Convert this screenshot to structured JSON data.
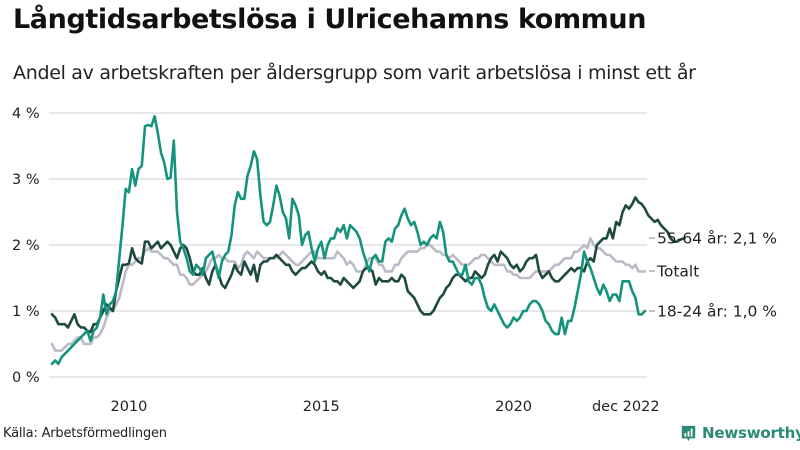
{
  "header": {
    "title": "Långtidsarbetslösa i Ulricehamns kommun",
    "subtitle": "Andel av arbetskraften per åldersgrupp som varit arbetslösa i minst ett år"
  },
  "footer": {
    "source": "Källa: Arbetsförmedlingen",
    "brand": "Newsworthy",
    "brand_icon": "bar-chart-speech-bubble-icon",
    "brand_color": "#2a8a74"
  },
  "chart_data": {
    "type": "line",
    "title": "Långtidsarbetslösa i Ulricehamns kommun",
    "subtitle": "Andel av arbetskraften per åldersgrupp som varit arbetslösa i minst ett år",
    "xlabel": "",
    "ylabel": "",
    "x_start": "2008-01",
    "x_end": "2022-12",
    "x_frequency": "monthly",
    "x_ticks": [
      {
        "label": "2010",
        "month_index": 24
      },
      {
        "label": "2015",
        "month_index": 84
      },
      {
        "label": "2020",
        "month_index": 144
      },
      {
        "label": "dec 2022",
        "month_index": 179
      }
    ],
    "y_ticks": [
      {
        "label": "0 %",
        "value": 0
      },
      {
        "label": "1 %",
        "value": 1
      },
      {
        "label": "2 %",
        "value": 2
      },
      {
        "label": "3 %",
        "value": 3
      },
      {
        "label": "4 %",
        "value": 4
      }
    ],
    "ylim": [
      0,
      4
    ],
    "grid": true,
    "legend": "inline-right",
    "series": [
      {
        "name": "Totalt",
        "end_label": "Totalt",
        "color": "#bdbac8",
        "values": [
          0.5,
          0.4,
          0.4,
          0.4,
          0.45,
          0.5,
          0.5,
          0.55,
          0.6,
          0.6,
          0.5,
          0.5,
          0.5,
          0.6,
          0.6,
          0.65,
          0.75,
          0.9,
          1.0,
          1.0,
          1.1,
          1.2,
          1.4,
          1.6,
          1.7,
          1.7,
          1.75,
          1.8,
          1.8,
          1.9,
          1.95,
          1.9,
          1.9,
          1.9,
          1.85,
          1.8,
          1.8,
          1.75,
          1.7,
          1.7,
          1.55,
          1.55,
          1.5,
          1.4,
          1.4,
          1.45,
          1.5,
          1.55,
          1.6,
          1.7,
          1.8,
          1.8,
          1.85,
          1.8,
          1.8,
          1.75,
          1.75,
          1.75,
          1.65,
          1.7,
          1.85,
          1.9,
          1.85,
          1.8,
          1.9,
          1.85,
          1.8,
          1.8,
          1.8,
          1.8,
          1.8,
          1.85,
          1.9,
          1.85,
          1.8,
          1.75,
          1.7,
          1.7,
          1.75,
          1.8,
          1.85,
          1.9,
          1.9,
          1.8,
          1.8,
          1.8,
          1.8,
          1.8,
          1.8,
          1.9,
          1.85,
          1.8,
          1.7,
          1.75,
          1.7,
          1.6,
          1.6,
          1.6,
          1.7,
          1.8,
          1.8,
          1.8,
          1.7,
          1.7,
          1.6,
          1.6,
          1.6,
          1.7,
          1.7,
          1.8,
          1.85,
          1.9,
          1.9,
          1.9,
          1.9,
          1.95,
          1.95,
          2.0,
          2.0,
          1.95,
          1.9,
          1.9,
          1.85,
          1.85,
          1.8,
          1.85,
          1.8,
          1.75,
          1.7,
          1.7,
          1.7,
          1.75,
          1.8,
          1.8,
          1.85,
          1.85,
          1.8,
          1.75,
          1.7,
          1.7,
          1.7,
          1.7,
          1.6,
          1.6,
          1.55,
          1.55,
          1.5,
          1.5,
          1.5,
          1.5,
          1.55,
          1.6,
          1.6,
          1.6,
          1.6,
          1.6,
          1.65,
          1.7,
          1.7,
          1.75,
          1.8,
          1.8,
          1.8,
          1.9,
          1.9,
          1.95,
          2.0,
          1.95,
          2.1,
          2.0,
          1.95,
          1.95,
          1.9,
          1.85,
          1.85,
          1.8,
          1.75,
          1.75,
          1.75,
          1.7,
          1.7,
          1.65,
          1.7,
          1.6,
          1.6,
          1.6
        ]
      },
      {
        "name": "55-64 år",
        "end_label": "55-64 år: 2,1 %",
        "color": "#1f4a3f",
        "values": [
          0.95,
          0.9,
          0.8,
          0.8,
          0.8,
          0.75,
          0.85,
          0.95,
          0.8,
          0.75,
          0.75,
          0.7,
          0.68,
          0.8,
          0.8,
          0.9,
          1.0,
          1.1,
          1.05,
          1.0,
          1.3,
          1.5,
          1.7,
          1.7,
          1.72,
          1.95,
          1.8,
          1.75,
          1.72,
          2.05,
          2.05,
          1.95,
          2.0,
          2.05,
          1.95,
          2.0,
          2.05,
          2.0,
          1.9,
          1.8,
          1.95,
          2.0,
          1.95,
          1.8,
          1.6,
          1.55,
          1.55,
          1.65,
          1.5,
          1.4,
          1.6,
          1.7,
          1.55,
          1.4,
          1.35,
          1.45,
          1.55,
          1.7,
          1.6,
          1.55,
          1.75,
          1.65,
          1.55,
          1.7,
          1.45,
          1.7,
          1.75,
          1.75,
          1.8,
          1.8,
          1.85,
          1.8,
          1.75,
          1.7,
          1.7,
          1.6,
          1.55,
          1.6,
          1.65,
          1.65,
          1.7,
          1.75,
          1.7,
          1.6,
          1.55,
          1.6,
          1.5,
          1.5,
          1.45,
          1.45,
          1.4,
          1.5,
          1.45,
          1.4,
          1.35,
          1.4,
          1.45,
          1.6,
          1.65,
          1.65,
          1.6,
          1.4,
          1.5,
          1.45,
          1.45,
          1.45,
          1.5,
          1.45,
          1.45,
          1.55,
          1.5,
          1.3,
          1.25,
          1.2,
          1.1,
          1.0,
          0.95,
          0.95,
          0.95,
          1.0,
          1.1,
          1.2,
          1.25,
          1.35,
          1.4,
          1.5,
          1.55,
          1.55,
          1.5,
          1.45,
          1.5,
          1.5,
          1.6,
          1.55,
          1.5,
          1.55,
          1.7,
          1.8,
          1.85,
          1.75,
          1.9,
          1.85,
          1.8,
          1.7,
          1.65,
          1.7,
          1.6,
          1.65,
          1.75,
          1.8,
          1.8,
          1.85,
          1.6,
          1.5,
          1.55,
          1.6,
          1.5,
          1.45,
          1.45,
          1.5,
          1.55,
          1.6,
          1.65,
          1.6,
          1.65,
          1.65,
          1.6,
          1.75,
          1.8,
          1.75,
          2.0,
          2.05,
          2.1,
          2.1,
          2.25,
          2.1,
          2.35,
          2.3,
          2.5,
          2.6,
          2.55,
          2.62,
          2.72,
          2.65,
          2.62,
          2.55,
          2.45,
          2.4,
          2.35,
          2.38,
          2.3,
          2.25,
          2.2,
          2.1,
          2.05,
          2.05,
          2.08,
          2.1
        ]
      },
      {
        "name": "18-24 år",
        "end_label": "18-24 år: 1,0 %",
        "color": "#16937d",
        "values": [
          0.2,
          0.25,
          0.2,
          0.3,
          0.35,
          0.4,
          0.45,
          0.5,
          0.55,
          0.6,
          0.65,
          0.7,
          0.55,
          0.7,
          0.75,
          0.9,
          1.25,
          0.95,
          1.1,
          1.15,
          1.3,
          1.8,
          2.3,
          2.85,
          2.8,
          3.15,
          2.9,
          3.15,
          3.2,
          3.8,
          3.82,
          3.8,
          3.95,
          3.7,
          3.4,
          3.25,
          3.0,
          3.02,
          3.58,
          2.5,
          2.05,
          1.95,
          1.8,
          1.6,
          1.55,
          1.7,
          1.65,
          1.55,
          1.8,
          1.85,
          1.9,
          1.7,
          1.5,
          1.75,
          1.85,
          1.9,
          2.15,
          2.6,
          2.8,
          2.7,
          2.7,
          3.05,
          3.2,
          3.42,
          3.3,
          2.75,
          2.35,
          2.3,
          2.35,
          2.6,
          2.9,
          2.75,
          2.5,
          2.4,
          2.1,
          2.7,
          2.6,
          2.45,
          2.0,
          2.15,
          2.2,
          1.95,
          1.75,
          1.95,
          2.05,
          1.8,
          2.0,
          2.1,
          2.1,
          2.25,
          2.2,
          2.3,
          2.1,
          2.3,
          2.25,
          2.2,
          2.1,
          1.9,
          1.75,
          1.6,
          1.8,
          1.85,
          1.75,
          1.75,
          2.05,
          2.1,
          2.05,
          2.25,
          2.3,
          2.45,
          2.55,
          2.4,
          2.3,
          2.35,
          2.2,
          2.0,
          2.05,
          2.0,
          2.1,
          2.15,
          2.1,
          2.35,
          2.2,
          1.85,
          1.75,
          1.75,
          1.65,
          1.55,
          1.55,
          1.7,
          1.45,
          1.4,
          1.5,
          1.5,
          1.4,
          1.2,
          1.05,
          1.0,
          1.1,
          1.0,
          0.9,
          0.8,
          0.75,
          0.8,
          0.9,
          0.85,
          0.9,
          1.0,
          1.0,
          1.1,
          1.15,
          1.15,
          1.1,
          1.0,
          0.85,
          0.8,
          0.7,
          0.65,
          0.65,
          0.9,
          0.65,
          0.85,
          0.85,
          1.05,
          1.3,
          1.55,
          1.9,
          1.75,
          1.65,
          1.5,
          1.35,
          1.25,
          1.4,
          1.3,
          1.15,
          1.25,
          1.25,
          1.15,
          1.45,
          1.45,
          1.45,
          1.3,
          1.2,
          0.95,
          0.95,
          1.0
        ]
      }
    ]
  }
}
